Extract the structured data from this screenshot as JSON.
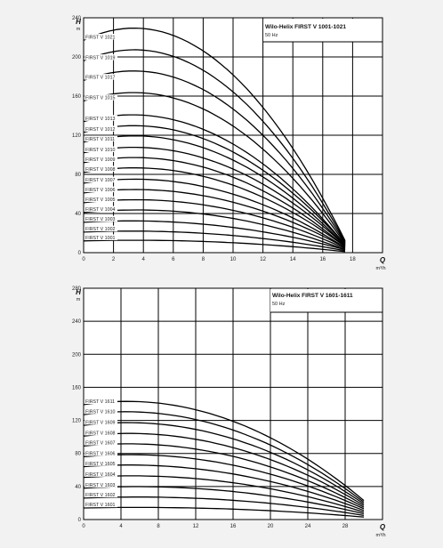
{
  "chart_data": [
    {
      "type": "line",
      "title": "Wilo-Helix FIRST V 1001-1021",
      "subtitle": "50 Hz",
      "ylabel": "H",
      "yunit": "m",
      "xlabel": "Q",
      "xunit": "m³/h",
      "xlim": [
        0,
        20
      ],
      "ylim": [
        0,
        240
      ],
      "xticks": [
        0,
        2,
        4,
        6,
        8,
        10,
        12,
        14,
        16,
        18
      ],
      "yticks": [
        0,
        40,
        80,
        120,
        160,
        200,
        240
      ],
      "x_end": 17.5,
      "grid": true,
      "series": [
        {
          "name": "FIRST V 1001",
          "values": [
            12,
            11,
            1
          ]
        },
        {
          "name": "FIRST V 1002",
          "values": [
            21,
            19,
            2
          ]
        },
        {
          "name": "FIRST V 1003",
          "values": [
            31,
            28,
            3
          ]
        },
        {
          "name": "FIRST V 1004",
          "values": [
            41,
            38,
            3
          ]
        },
        {
          "name": "FIRST V 1005",
          "values": [
            51,
            47,
            4
          ]
        },
        {
          "name": "FIRST V 1006",
          "values": [
            61,
            56,
            5
          ]
        },
        {
          "name": "FIRST V 1007",
          "values": [
            71,
            65,
            5
          ]
        },
        {
          "name": "FIRST V 1008",
          "values": [
            82,
            75,
            6
          ]
        },
        {
          "name": "FIRST V 1009",
          "values": [
            92,
            84,
            6
          ]
        },
        {
          "name": "FIRST V 1010",
          "values": [
            102,
            93,
            7
          ]
        },
        {
          "name": "FIRST V 1011",
          "values": [
            113,
            103,
            7
          ]
        },
        {
          "name": "FIRST V 1012",
          "values": [
            123,
            112,
            8
          ]
        },
        {
          "name": "FIRST V 1013",
          "values": [
            134,
            121,
            8
          ]
        },
        {
          "name": "FIRST V 1015",
          "values": [
            155,
            141,
            9
          ]
        },
        {
          "name": "FIRST V 1017",
          "values": [
            176,
            160,
            10
          ]
        },
        {
          "name": "FIRST V 1019",
          "values": [
            196,
            179,
            11
          ]
        },
        {
          "name": "FIRST V 1021",
          "values": [
            217,
            198,
            12
          ]
        }
      ]
    },
    {
      "type": "line",
      "title": "Wilo-Helix FIRST V 1601-1611",
      "subtitle": "50 Hz",
      "ylabel": "H",
      "yunit": "m",
      "xlabel": "Q",
      "xunit": "m³/h",
      "xlim": [
        0,
        32
      ],
      "ylim": [
        0,
        280
      ],
      "xticks": [
        0,
        4,
        8,
        12,
        16,
        20,
        24,
        28
      ],
      "yticks": [
        0,
        40,
        80,
        120,
        160,
        200,
        240,
        280
      ],
      "x_end": 30,
      "grid": true,
      "series": [
        {
          "name": "FIRST V 1601",
          "values": [
            14,
            13,
            3
          ]
        },
        {
          "name": "FIRST V 1602",
          "values": [
            26,
            24,
            5
          ]
        },
        {
          "name": "FIRST V 1603",
          "values": [
            38,
            35,
            7
          ]
        },
        {
          "name": "FIRST V 1604",
          "values": [
            51,
            46,
            9
          ]
        },
        {
          "name": "FIRST V 1605",
          "values": [
            64,
            57,
            11
          ]
        },
        {
          "name": "FIRST V 1606",
          "values": [
            76,
            68,
            13
          ]
        },
        {
          "name": "FIRST V 1607",
          "values": [
            89,
            79,
            15
          ]
        },
        {
          "name": "FIRST V 1608",
          "values": [
            101,
            90,
            17
          ]
        },
        {
          "name": "FIRST V 1609",
          "values": [
            114,
            101,
            19
          ]
        },
        {
          "name": "FIRST V 1610",
          "values": [
            127,
            112,
            21
          ]
        },
        {
          "name": "FIRST V 1611",
          "values": [
            139,
            123,
            23
          ]
        }
      ]
    }
  ]
}
